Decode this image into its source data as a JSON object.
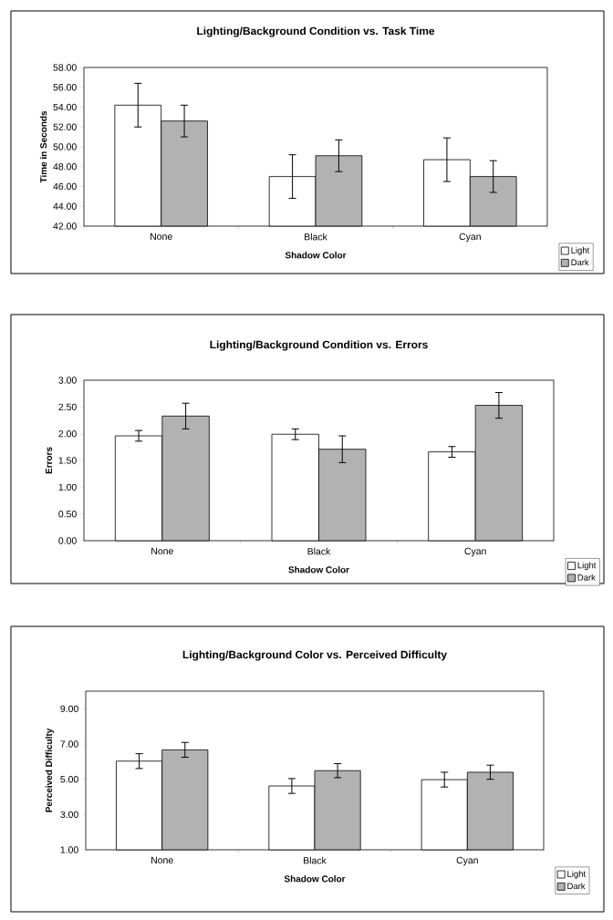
{
  "chart_data": [
    {
      "type": "bar",
      "title": "Lighting/Background Condition vs. Task Time",
      "xlabel": "Shadow Color",
      "ylabel": "Time in Seconds",
      "categories": [
        "None",
        "Black",
        "Cyan"
      ],
      "series": [
        {
          "name": "Light",
          "color": "#ffffff",
          "values": [
            54.2,
            47.0,
            48.7
          ],
          "errors": [
            2.2,
            2.2,
            2.2
          ]
        },
        {
          "name": "Dark",
          "color": "#b2b2b2",
          "values": [
            52.6,
            49.1,
            47.0
          ],
          "errors": [
            1.6,
            1.6,
            1.6
          ]
        }
      ],
      "ylim": [
        42,
        58
      ],
      "yticks": [
        {
          "value": 42,
          "label": "42.00"
        },
        {
          "value": 44,
          "label": "44.00"
        },
        {
          "value": 46,
          "label": "46.00"
        },
        {
          "value": 48,
          "label": "48.00"
        },
        {
          "value": 50,
          "label": "50.00"
        },
        {
          "value": 52,
          "label": "52.00"
        },
        {
          "value": 54,
          "label": "54.00"
        },
        {
          "value": 56,
          "label": "56.00"
        },
        {
          "value": 58,
          "label": "58.00"
        }
      ],
      "legend": "bottom right"
    },
    {
      "type": "bar",
      "title": "Lighting/Background Condition vs. Errors",
      "xlabel": "Shadow Color",
      "ylabel": "Errors",
      "categories": [
        "None",
        "Black",
        "Cyan"
      ],
      "series": [
        {
          "name": "Light",
          "color": "#ffffff",
          "values": [
            1.96,
            1.99,
            1.66
          ],
          "errors": [
            0.1,
            0.1,
            0.1
          ]
        },
        {
          "name": "Dark",
          "color": "#b2b2b2",
          "values": [
            2.33,
            1.71,
            2.53
          ],
          "errors": [
            0.24,
            0.25,
            0.24
          ]
        }
      ],
      "ylim": [
        0,
        3
      ],
      "yticks": [
        {
          "value": 0,
          "label": "0.00"
        },
        {
          "value": 0.5,
          "label": "0.50"
        },
        {
          "value": 1,
          "label": "1.00"
        },
        {
          "value": 1.5,
          "label": "1.50"
        },
        {
          "value": 2,
          "label": "2.00"
        },
        {
          "value": 2.5,
          "label": "2.50"
        },
        {
          "value": 3,
          "label": "3.00"
        }
      ],
      "legend": "bottom right"
    },
    {
      "type": "bar",
      "title": "Lighting/Background Color vs. Perceived Difficulty",
      "xlabel": "Shadow Color",
      "ylabel": "Perceived Difficulty",
      "categories": [
        "None",
        "Black",
        "Cyan"
      ],
      "series": [
        {
          "name": "Light",
          "color": "#ffffff",
          "values": [
            6.03,
            4.62,
            4.98
          ],
          "errors": [
            0.42,
            0.42,
            0.42
          ]
        },
        {
          "name": "Dark",
          "color": "#b2b2b2",
          "values": [
            6.67,
            5.49,
            5.4
          ],
          "errors": [
            0.42,
            0.4,
            0.4
          ]
        }
      ],
      "ylim": [
        1,
        10
      ],
      "yticks": [
        {
          "value": 1,
          "label": "1.00"
        },
        {
          "value": 3,
          "label": "3.00"
        },
        {
          "value": 5,
          "label": "5.00"
        },
        {
          "value": 7,
          "label": "7.00"
        },
        {
          "value": 9,
          "label": "9.00"
        }
      ],
      "legend": "bottom right"
    }
  ]
}
